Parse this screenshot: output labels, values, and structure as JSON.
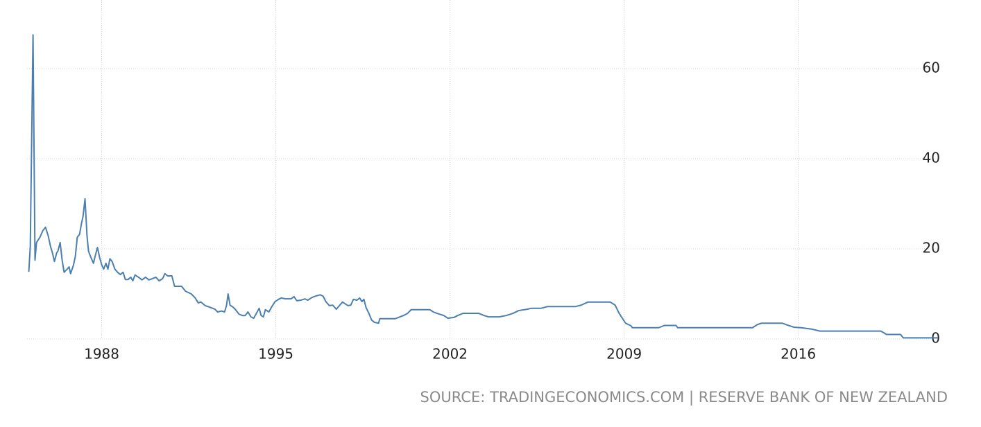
{
  "chart_data": {
    "type": "line",
    "source": "SOURCE: TRADINGECONOMICS.COM | RESERVE BANK OF NEW ZEALAND",
    "color": "#4a7fb0",
    "xlim": [
      1985.0,
      2021.7
    ],
    "xticks": [
      1988,
      1995,
      2002,
      2009,
      2016
    ],
    "ylim": [
      0,
      75
    ],
    "yticks": [
      0,
      20,
      40,
      60
    ],
    "grid": true,
    "x": [
      1985.07,
      1985.13,
      1985.24,
      1985.32,
      1985.38,
      1985.52,
      1985.63,
      1985.74,
      1985.85,
      1985.94,
      1986.02,
      1986.1,
      1986.19,
      1986.24,
      1986.33,
      1986.41,
      1986.49,
      1986.61,
      1986.69,
      1986.75,
      1986.86,
      1986.94,
      1987.02,
      1987.11,
      1987.19,
      1987.25,
      1987.33,
      1987.41,
      1987.47,
      1987.55,
      1987.67,
      1987.72,
      1987.83,
      1987.92,
      1988.0,
      1988.08,
      1988.17,
      1988.25,
      1988.33,
      1988.42,
      1988.53,
      1988.64,
      1988.75,
      1988.86,
      1988.95,
      1989.06,
      1989.17,
      1989.25,
      1989.34,
      1989.48,
      1989.62,
      1989.76,
      1989.9,
      1990.04,
      1990.18,
      1990.31,
      1990.45,
      1990.54,
      1990.65,
      1990.82,
      1990.93,
      1991.21,
      1991.37,
      1991.6,
      1991.76,
      1991.88,
      1991.99,
      1992.16,
      1992.32,
      1992.55,
      1992.66,
      1992.82,
      1992.94,
      1993.02,
      1993.08,
      1993.16,
      1993.27,
      1993.38,
      1993.52,
      1993.66,
      1993.77,
      1993.88,
      1994.0,
      1994.11,
      1994.22,
      1994.33,
      1994.41,
      1994.5,
      1994.58,
      1994.72,
      1994.83,
      1994.97,
      1995.11,
      1995.22,
      1995.39,
      1995.61,
      1995.73,
      1995.84,
      1996.0,
      1996.17,
      1996.28,
      1996.45,
      1996.59,
      1996.78,
      1996.9,
      1997.01,
      1997.15,
      1997.29,
      1997.43,
      1997.57,
      1997.68,
      1997.79,
      1997.9,
      1998.01,
      1998.12,
      1998.26,
      1998.37,
      1998.46,
      1998.54,
      1998.63,
      1998.74,
      1998.85,
      1998.96,
      1999.13,
      1999.18,
      1999.8,
      1999.94,
      2000.13,
      2000.3,
      2000.44,
      2001.19,
      2001.33,
      2001.47,
      2001.75,
      2001.92,
      2002.17,
      2002.31,
      2002.53,
      2003.15,
      2003.37,
      2003.56,
      2003.98,
      2004.26,
      2004.54,
      2004.76,
      2005.1,
      2005.26,
      2005.65,
      2005.93,
      2007.05,
      2007.27,
      2007.55,
      2008.44,
      2008.64,
      2008.8,
      2008.94,
      2009.06,
      2009.28,
      2009.33,
      2010.39,
      2010.62,
      2011.09,
      2011.15,
      2014.16,
      2014.36,
      2014.52,
      2015.36,
      2015.55,
      2015.83,
      2016.11,
      2016.53,
      2016.87,
      2019.32,
      2019.55,
      2020.11,
      2020.22,
      2021.6
    ],
    "values": [
      14.9,
      20.6,
      67.5,
      17.5,
      21.4,
      22.6,
      24,
      24.8,
      22.9,
      20.6,
      19.1,
      17.2,
      19.1,
      19.5,
      21.4,
      17.5,
      14.8,
      15.5,
      16,
      14.5,
      16.3,
      18.3,
      22.6,
      23.2,
      25.7,
      27.2,
      31.1,
      22.9,
      19.5,
      18.3,
      16.8,
      18,
      20.3,
      18,
      16.5,
      15.5,
      16.8,
      15.5,
      17.8,
      17.2,
      15.5,
      14.8,
      14.3,
      14.8,
      13.2,
      13.2,
      13.7,
      12.9,
      14.2,
      13.7,
      13.1,
      13.7,
      13.1,
      13.4,
      13.7,
      12.9,
      13.4,
      14.5,
      14,
      14,
      11.7,
      11.7,
      10.6,
      10,
      9.1,
      8,
      8.2,
      7.4,
      7.1,
      6.6,
      6,
      6.2,
      6,
      7.5,
      10,
      7.5,
      7.1,
      6.5,
      5.5,
      5.2,
      5.2,
      6,
      4.9,
      4.6,
      5.7,
      6.8,
      5.2,
      4.9,
      6.5,
      6,
      7.1,
      8.3,
      8.8,
      9.1,
      8.9,
      8.9,
      9.4,
      8.5,
      8.6,
      8.9,
      8.6,
      9.2,
      9.5,
      9.8,
      9.5,
      8.3,
      7.4,
      7.5,
      6.6,
      7.5,
      8.2,
      7.8,
      7.4,
      7.5,
      8.8,
      8.6,
      9.1,
      8.3,
      8.8,
      6.9,
      5.7,
      4.2,
      3.7,
      3.5,
      4.5,
      4.5,
      4.8,
      5.2,
      5.7,
      6.5,
      6.5,
      6,
      5.7,
      5.2,
      4.6,
      4.8,
      5.2,
      5.7,
      5.7,
      5.2,
      4.9,
      4.9,
      5.2,
      5.7,
      6.3,
      6.6,
      6.8,
      6.8,
      7.2,
      7.2,
      7.5,
      8.2,
      8.2,
      7.5,
      5.7,
      4.5,
      3.5,
      2.9,
      2.5,
      2.5,
      3,
      3,
      2.5,
      2.5,
      3.2,
      3.5,
      3.5,
      3.1,
      2.6,
      2.5,
      2.2,
      1.75,
      1.75,
      1,
      1,
      0.25,
      0.25
    ]
  }
}
